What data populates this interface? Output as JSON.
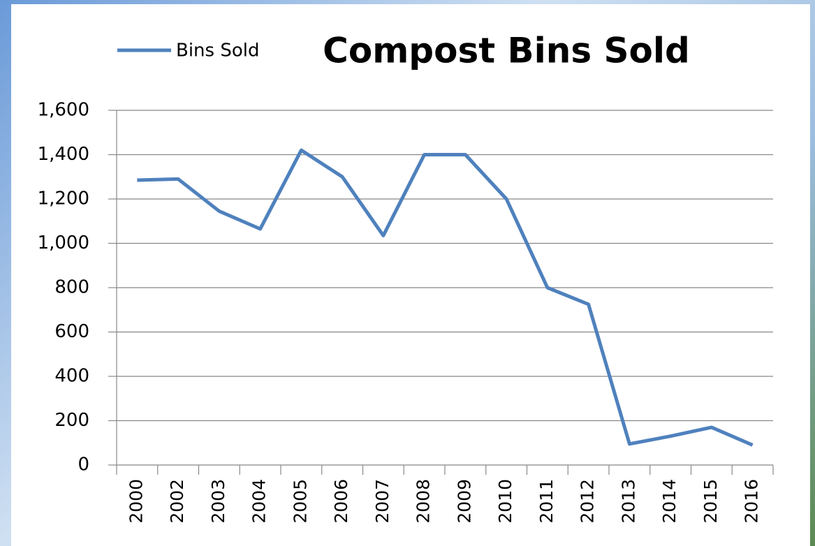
{
  "chart_data": {
    "type": "line",
    "title": "Compost Bins Sold",
    "categories": [
      "2000",
      "2002",
      "2003",
      "2004",
      "2005",
      "2006",
      "2007",
      "2008",
      "2009",
      "2010",
      "2011",
      "2012",
      "2013",
      "2014",
      "2015",
      "2016"
    ],
    "series": [
      {
        "name": "Bins Sold",
        "color": "#4f81bd",
        "values": [
          1285,
          1290,
          1145,
          1065,
          1420,
          1300,
          1035,
          1400,
          1400,
          1200,
          800,
          725,
          95,
          130,
          170,
          90
        ]
      }
    ],
    "ylim": [
      0,
      1600
    ],
    "yticks": [
      0,
      200,
      400,
      600,
      800,
      {
        "value": 1000,
        "label": "1,000"
      },
      {
        "value": 1200,
        "label": "1,200"
      },
      {
        "value": 1400,
        "label": "1,400"
      },
      {
        "value": 1600,
        "label": "1,600"
      }
    ],
    "grid": true,
    "legend": "top-left"
  }
}
